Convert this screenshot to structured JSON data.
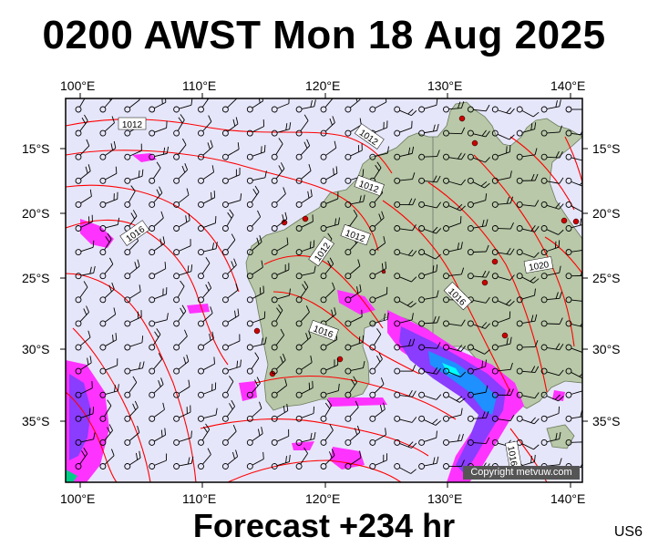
{
  "header": {
    "title": "0200 AWST Mon 18 Aug 2025"
  },
  "footer": {
    "forecast": "Forecast +234 hr",
    "code": "US6"
  },
  "map": {
    "lon_labels": [
      "100°E",
      "110°E",
      "120°E",
      "130°E",
      "140°E"
    ],
    "lat_labels": [
      "15°S",
      "20°S",
      "25°S",
      "30°S",
      "35°S"
    ],
    "isobar_labels": [
      "1012",
      "1012",
      "1012",
      "1016",
      "1012",
      "1012",
      "1020",
      "1016",
      "1016",
      "1016"
    ],
    "copyright": "Copyright metvuw.com",
    "colors": {
      "ocean": "#e6e6fa",
      "land": "#b8c8a8",
      "isobar": "#ff0000",
      "rain_light": "#ff33ff",
      "rain_heavy": "#7a2cff",
      "rain_core": "#1e90ff"
    }
  }
}
